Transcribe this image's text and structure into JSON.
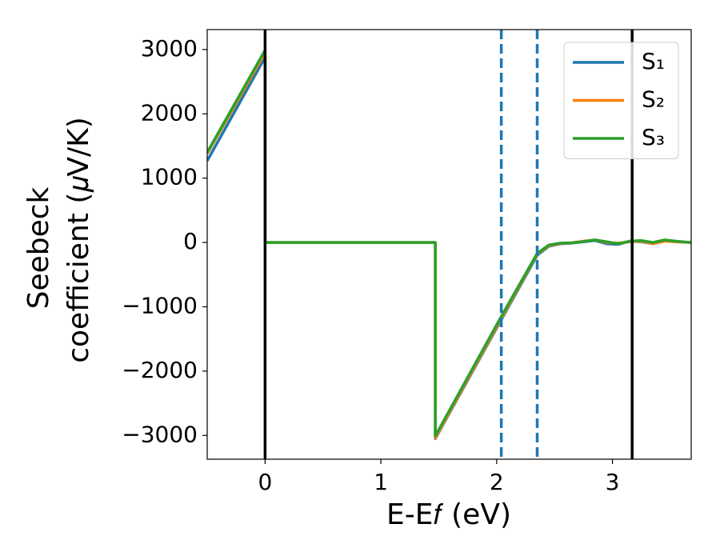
{
  "chart_data": {
    "type": "line",
    "xlabel": "E-E𝑓 (eV)",
    "ylabel": [
      "Seebeck",
      "coefficient  (𝜇V/K)"
    ],
    "x": [
      -0.5,
      0,
      0,
      1.47,
      1.47,
      2.04,
      2.35,
      2.45,
      2.55,
      2.65,
      2.75,
      2.85,
      2.95,
      3.05,
      3.15,
      3.25,
      3.35,
      3.45,
      3.55,
      3.68
    ],
    "series": [
      {
        "name": "S₁",
        "color": "#1f77b4",
        "values": [
          1270,
          2880,
          0,
          0,
          -3050,
          -1200,
          -200,
          -60,
          -20,
          -10,
          10,
          30,
          -20,
          -30,
          20,
          10,
          -20,
          30,
          10,
          0
        ]
      },
      {
        "name": "S₂",
        "color": "#ff7f0e",
        "values": [
          1380,
          2950,
          0,
          0,
          -3040,
          -1180,
          -180,
          -50,
          -15,
          -5,
          20,
          40,
          0,
          -10,
          10,
          20,
          -20,
          20,
          10,
          0
        ]
      },
      {
        "name": "S₃",
        "color": "#2ca02c",
        "values": [
          1400,
          2990,
          0,
          0,
          -3010,
          -1150,
          -170,
          -40,
          -10,
          -5,
          15,
          40,
          10,
          -20,
          20,
          30,
          0,
          40,
          20,
          0
        ]
      }
    ],
    "vlines": [
      {
        "x": 0,
        "color": "#000000",
        "style": "solid"
      },
      {
        "x": 3.17,
        "color": "#000000",
        "style": "solid"
      },
      {
        "x": 2.04,
        "color": "#1f77b4",
        "style": "dashed"
      },
      {
        "x": 2.35,
        "color": "#1f77b4",
        "style": "dashed"
      }
    ],
    "xlim": [
      -0.5,
      3.68
    ],
    "ylim": [
      -3370,
      3310
    ],
    "xticks": [
      0,
      1,
      2,
      3
    ],
    "yticks": [
      {
        "value": -3000,
        "label": "−3000"
      },
      {
        "value": -2000,
        "label": "−2000"
      },
      {
        "value": -1000,
        "label": "−1000"
      },
      0,
      1000,
      2000,
      3000
    ],
    "grid": false,
    "legend": "upper right"
  }
}
